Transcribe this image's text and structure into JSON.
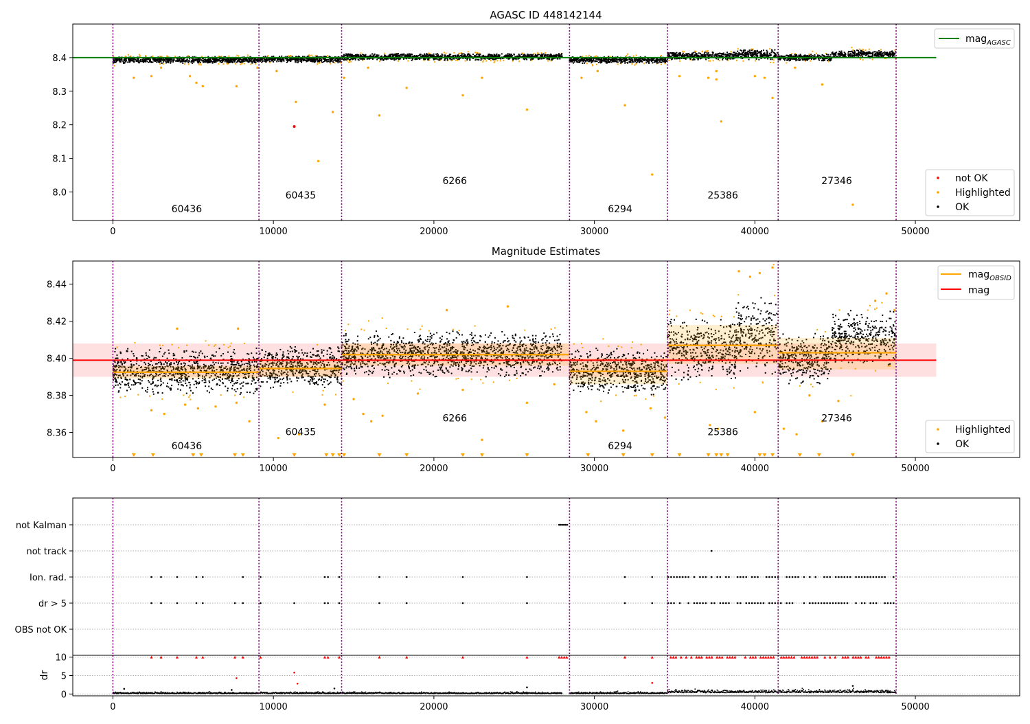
{
  "chart_data": [
    {
      "type": "scatter",
      "title": "AGASC ID 448142144",
      "xlim": [
        -2500,
        56500
      ],
      "ylim": [
        7.915,
        8.5
      ],
      "x_ticks": [
        0,
        10000,
        20000,
        30000,
        40000,
        50000
      ],
      "y_ticks": [
        8.0,
        8.1,
        8.2,
        8.3,
        8.4
      ],
      "y_tick_labels": [
        "8.0",
        "8.1",
        "8.2",
        "8.3",
        "8.4"
      ],
      "obsid_boundaries": [
        0,
        9100,
        14250,
        28450,
        34550,
        41450,
        48800
      ],
      "obsid_labels": [
        {
          "text": "60436",
          "x": 4600,
          "y": 7.94
        },
        {
          "text": "60435",
          "x": 11700,
          "y": 7.98
        },
        {
          "text": "6266",
          "x": 21300,
          "y": 8.023
        },
        {
          "text": "6294",
          "x": 31600,
          "y": 7.94
        },
        {
          "text": "25386",
          "x": 38000,
          "y": 7.98
        },
        {
          "text": "27346",
          "x": 45100,
          "y": 8.023
        }
      ],
      "reference_line": {
        "name": "mag_AGASC",
        "value": 8.4,
        "x_range": [
          -2500,
          51300
        ],
        "color": "#008000"
      },
      "segments": [
        {
          "x": [
            0,
            9100
          ],
          "center": 8.393,
          "spread": 0.009
        },
        {
          "x": [
            9100,
            14250
          ],
          "center": 8.395,
          "spread": 0.009
        },
        {
          "x": [
            14250,
            28000
          ],
          "center": 8.402,
          "spread": 0.009
        },
        {
          "x": [
            28450,
            34550
          ],
          "center": 8.393,
          "spread": 0.009
        },
        {
          "x": [
            34550,
            38800
          ],
          "center": 8.405,
          "spread": 0.011
        },
        {
          "x": [
            38800,
            41450
          ],
          "center": 8.409,
          "spread": 0.014
        },
        {
          "x": [
            41450,
            44800
          ],
          "center": 8.4,
          "spread": 0.009
        },
        {
          "x": [
            44800,
            48800
          ],
          "center": 8.41,
          "spread": 0.011
        }
      ],
      "highlighted_points": [
        [
          1300,
          8.34
        ],
        [
          2400,
          8.345
        ],
        [
          3000,
          8.37
        ],
        [
          4800,
          8.345
        ],
        [
          5200,
          8.325
        ],
        [
          5600,
          8.315
        ],
        [
          7700,
          8.315
        ],
        [
          9000,
          8.37
        ],
        [
          10200,
          8.36
        ],
        [
          11400,
          8.268
        ],
        [
          12800,
          8.092
        ],
        [
          13700,
          8.238
        ],
        [
          14400,
          8.34
        ],
        [
          15900,
          8.37
        ],
        [
          16600,
          8.228
        ],
        [
          18300,
          8.31
        ],
        [
          21800,
          8.288
        ],
        [
          23000,
          8.34
        ],
        [
          25800,
          8.245
        ],
        [
          29200,
          8.34
        ],
        [
          30200,
          8.36
        ],
        [
          31900,
          8.258
        ],
        [
          33600,
          8.052
        ],
        [
          35300,
          8.345
        ],
        [
          37100,
          8.34
        ],
        [
          37600,
          8.335
        ],
        [
          37600,
          8.36
        ],
        [
          37900,
          8.21
        ],
        [
          40000,
          8.345
        ],
        [
          40600,
          8.34
        ],
        [
          41100,
          8.28
        ],
        [
          42500,
          8.37
        ],
        [
          44200,
          8.32
        ],
        [
          46100,
          7.962
        ]
      ],
      "not_ok_points": [
        [
          11300,
          8.195
        ]
      ],
      "legend": [
        {
          "label": "mag",
          "sub": "AGASC",
          "color": "#008000"
        },
        {
          "label": "not OK",
          "color": "#ff0000"
        },
        {
          "label": "Highlighted",
          "color": "#ffa500"
        },
        {
          "label": "OK",
          "color": "#000000"
        }
      ]
    },
    {
      "type": "scatter",
      "title": "Magnitude Estimates",
      "xlim": [
        -2500,
        56500
      ],
      "ylim": [
        8.3465,
        8.4525
      ],
      "x_ticks": [
        0,
        10000,
        20000,
        30000,
        40000,
        50000
      ],
      "y_ticks": [
        8.36,
        8.38,
        8.4,
        8.42,
        8.44
      ],
      "y_tick_labels": [
        "8.36",
        "8.38",
        "8.40",
        "8.42",
        "8.44"
      ],
      "obsid_boundaries": [
        0,
        9100,
        14250,
        28450,
        34550,
        41450,
        48800
      ],
      "obsid_labels": [
        {
          "text": "60436",
          "x": 4600,
          "y": 8.351
        },
        {
          "text": "60435",
          "x": 11700,
          "y": 8.3585
        },
        {
          "text": "6266",
          "x": 21300,
          "y": 8.366
        },
        {
          "text": "6294",
          "x": 31600,
          "y": 8.351
        },
        {
          "text": "25386",
          "x": 38000,
          "y": 8.3585
        },
        {
          "text": "27346",
          "x": 45100,
          "y": 8.366
        }
      ],
      "mag_line": {
        "name": "mag",
        "value": 8.399,
        "band": [
          8.39,
          8.408
        ],
        "x_range": [
          -2500,
          51300
        ],
        "color": "#ff0000"
      },
      "obsid_mag": [
        {
          "x": [
            0,
            9100
          ],
          "value": 8.3925,
          "band": [
            8.389,
            8.396
          ]
        },
        {
          "x": [
            9100,
            14250
          ],
          "value": 8.3945,
          "band": [
            8.39,
            8.399
          ]
        },
        {
          "x": [
            14250,
            28450
          ],
          "value": 8.402,
          "band": [
            8.396,
            8.408
          ]
        },
        {
          "x": [
            28450,
            34550
          ],
          "value": 8.393,
          "band": [
            8.386,
            8.4
          ]
        },
        {
          "x": [
            34550,
            41450
          ],
          "value": 8.407,
          "band": [
            8.397,
            8.418
          ]
        },
        {
          "x": [
            41450,
            48800
          ],
          "value": 8.403,
          "band": [
            8.394,
            8.411
          ]
        }
      ],
      "segments": [
        {
          "x": [
            0,
            9100
          ],
          "center": 8.393,
          "spread": 0.011
        },
        {
          "x": [
            9100,
            14250
          ],
          "center": 8.395,
          "spread": 0.01
        },
        {
          "x": [
            14250,
            28000
          ],
          "center": 8.402,
          "spread": 0.011
        },
        {
          "x": [
            28450,
            34550
          ],
          "center": 8.393,
          "spread": 0.011
        },
        {
          "x": [
            34550,
            38800
          ],
          "center": 8.405,
          "spread": 0.015
        },
        {
          "x": [
            38800,
            41450
          ],
          "center": 8.412,
          "spread": 0.018
        },
        {
          "x": [
            41450,
            44800
          ],
          "center": 8.4,
          "spread": 0.012
        },
        {
          "x": [
            44800,
            48800
          ],
          "center": 8.411,
          "spread": 0.013
        }
      ],
      "highlighted_points": [
        [
          2400,
          8.372
        ],
        [
          3200,
          8.37
        ],
        [
          4500,
          8.375
        ],
        [
          5300,
          8.373
        ],
        [
          6400,
          8.374
        ],
        [
          7700,
          8.376
        ],
        [
          8500,
          8.366
        ],
        [
          10300,
          8.357
        ],
        [
          11600,
          8.359
        ],
        [
          13200,
          8.375
        ],
        [
          15000,
          8.378
        ],
        [
          15600,
          8.37
        ],
        [
          16100,
          8.366
        ],
        [
          16800,
          8.369
        ],
        [
          19000,
          8.381
        ],
        [
          21800,
          8.383
        ],
        [
          23000,
          8.356
        ],
        [
          25800,
          8.376
        ],
        [
          27500,
          8.386
        ],
        [
          29500,
          8.371
        ],
        [
          30100,
          8.366
        ],
        [
          31800,
          8.361
        ],
        [
          33500,
          8.373
        ],
        [
          34400,
          8.368
        ],
        [
          37200,
          8.364
        ],
        [
          37700,
          8.362
        ],
        [
          40000,
          8.371
        ],
        [
          41800,
          8.362
        ],
        [
          42600,
          8.359
        ],
        [
          43400,
          8.38
        ],
        [
          44200,
          8.366
        ],
        [
          45200,
          8.377
        ],
        [
          39000,
          8.447
        ],
        [
          39700,
          8.444
        ],
        [
          40300,
          8.446
        ],
        [
          41100,
          8.449
        ],
        [
          47500,
          8.431
        ],
        [
          48200,
          8.435
        ],
        [
          48700,
          8.426
        ],
        [
          20800,
          8.426
        ],
        [
          24600,
          8.428
        ],
        [
          4000,
          8.416
        ],
        [
          7800,
          8.416
        ]
      ],
      "off_scale_markers_x": [
        1300,
        2500,
        5000,
        5500,
        7600,
        8100,
        11300,
        13300,
        13700,
        14100,
        14400,
        16600,
        18300,
        21800,
        23000,
        25800,
        29600,
        31800,
        33600,
        35300,
        37100,
        37600,
        37900,
        38300,
        40300,
        40600,
        41100,
        42800,
        44000,
        46100
      ],
      "legend": [
        {
          "label": "mag",
          "sub": "OBSID",
          "color": "#ffa500"
        },
        {
          "label": "mag",
          "color": "#ff0000"
        },
        {
          "label": "Highlighted",
          "color": "#ffa500"
        },
        {
          "label": "OK",
          "color": "#000000"
        }
      ]
    },
    {
      "type": "scatter",
      "title": "",
      "xlim": [
        -2500,
        56500
      ],
      "categories": [
        "not Kalman",
        "not track",
        "Ion. rad.",
        "dr > 5",
        "OBS not OK"
      ],
      "obsid_boundaries": [
        0,
        9100,
        14250,
        28450,
        34550,
        41450,
        48800
      ],
      "flags": {
        "not Kalman": [
          27800,
          27900,
          28000,
          28100,
          28200,
          28300
        ],
        "not track": [
          37300
        ],
        "Ion. rad.": [
          2400,
          3000,
          4000,
          5200,
          5600,
          8100,
          9200,
          13200,
          13400,
          14100,
          16600,
          18300,
          21800,
          25800,
          31900,
          33600
        ],
        "dr > 5": [
          2400,
          3000,
          4000,
          5200,
          5600,
          7600,
          8100,
          9200,
          11300,
          13200,
          13400,
          14100,
          16600,
          18300,
          21800,
          25800,
          31900,
          33600
        ],
        "OBS not OK": []
      },
      "dense_flag_ranges": [
        {
          "category": "Ion. rad.",
          "x": [
            34600,
            48800
          ]
        },
        {
          "category": "dr > 5",
          "x": [
            34600,
            48800
          ]
        }
      ]
    },
    {
      "type": "scatter",
      "title": "",
      "ylabel": "dr",
      "xlim": [
        -2500,
        56500
      ],
      "ylim": [
        -0.5,
        10.5
      ],
      "x_ticks": [
        0,
        10000,
        20000,
        30000,
        40000,
        50000
      ],
      "y_ticks": [
        0,
        5,
        10
      ],
      "y_tick_labels": [
        "0",
        "5",
        "10"
      ],
      "obsid_boundaries": [
        0,
        9100,
        14250,
        28450,
        34550,
        41450,
        48800
      ],
      "clipped_x": [
        2400,
        3000,
        4000,
        5200,
        5600,
        7600,
        8100,
        9200,
        13200,
        13400,
        14100,
        16600,
        18300,
        21800,
        25800,
        31900,
        33600
      ],
      "dense_clipped_ranges": [
        [
          27800,
          28400
        ],
        [
          34600,
          48800
        ]
      ],
      "outlier_points": [
        [
          11300,
          5.8
        ],
        [
          7700,
          4.3
        ],
        [
          11500,
          2.8
        ],
        [
          33600,
          3.0
        ],
        [
          46100,
          2.2
        ],
        [
          25800,
          1.8
        ],
        [
          700,
          1.4
        ],
        [
          13800,
          1.5
        ],
        [
          7400,
          1.1
        ]
      ]
    }
  ]
}
